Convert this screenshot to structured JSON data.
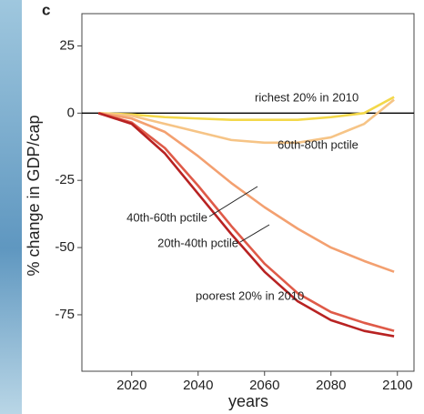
{
  "chart_data": {
    "type": "line",
    "panel_label": "c",
    "ylabel": "% change in GDP/cap",
    "xlabel": "years",
    "x": [
      2010,
      2020,
      2030,
      2040,
      2050,
      2060,
      2070,
      2080,
      2090,
      2099
    ],
    "xlim": [
      2005,
      2105
    ],
    "xticks": [
      2020,
      2040,
      2060,
      2080,
      2100
    ],
    "ylim": [
      -96,
      37
    ],
    "yticks": [
      25,
      0,
      -25,
      -50,
      -75
    ],
    "zero_line": true,
    "series": [
      {
        "name": "richest 20% in 2010",
        "color": "#f3d84a",
        "values": [
          0,
          -0.5,
          -1.5,
          -2,
          -2.5,
          -2.5,
          -2.5,
          -1.5,
          0,
          6
        ]
      },
      {
        "name": "60th-80th pctile",
        "color": "#f6c486",
        "values": [
          0,
          -1,
          -4,
          -7,
          -10,
          -11,
          -11,
          -9,
          -4,
          5
        ]
      },
      {
        "name": "40th-60th pctile",
        "color": "#f3a070",
        "values": [
          0,
          -2,
          -7,
          -16,
          -26,
          -35,
          -43,
          -50,
          -55,
          -59
        ]
      },
      {
        "name": "20th-40th pctile",
        "color": "#df5a48",
        "values": [
          0,
          -3.5,
          -13,
          -27,
          -42,
          -56,
          -67,
          -74,
          -78,
          -81
        ]
      },
      {
        "name": "poorest 20% in 2010",
        "color": "#b82222",
        "values": [
          0,
          -4,
          -15,
          -30,
          -45,
          -59,
          -70,
          -77,
          -81,
          -83
        ]
      }
    ]
  }
}
